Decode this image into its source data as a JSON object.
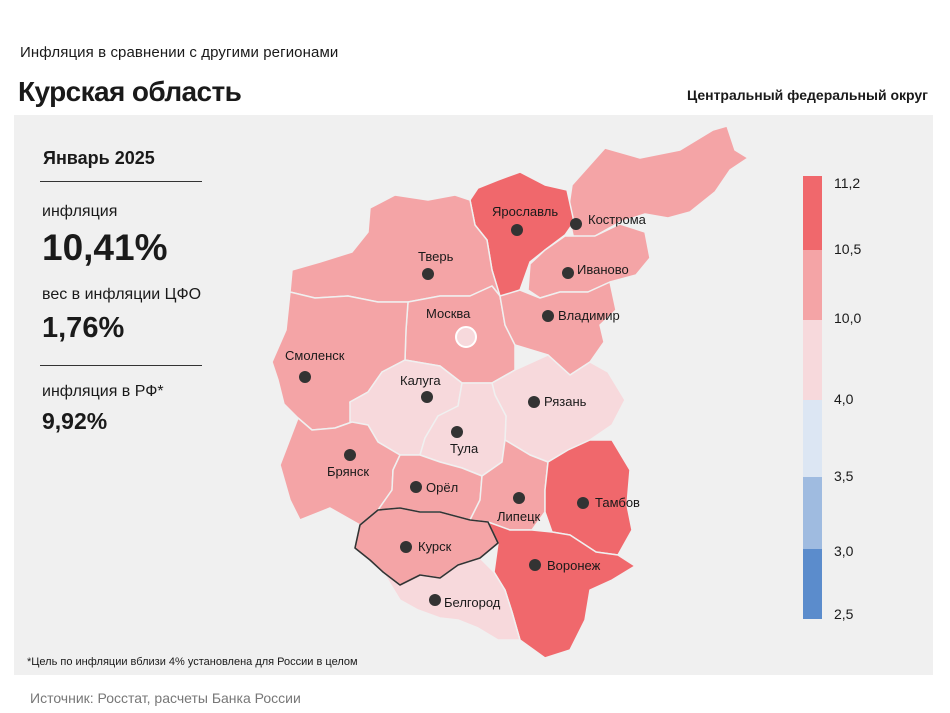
{
  "header": {
    "subtitle": "Инфляция  в сравнении  с другими  регионами",
    "title": "Курская область",
    "district": "Центральный федеральный округ"
  },
  "stats": {
    "period": "Январь 2025",
    "inflation_label": "инфляция",
    "inflation_value": "10,41%",
    "weight_label": "вес в инфляции  ЦФО",
    "weight_value": "1,76%",
    "rf_label": "инфляция  в РФ*",
    "rf_value": "9,92%"
  },
  "footnote": "*Цель по инфляции вблизи 4% установлена для России в целом",
  "source": "Источник: Росстат, расчеты Банка России",
  "highlighted_region": "Курск",
  "colors": {
    "above_10_5": "#f0686c",
    "r10_0_10_5": "#f4a4a6",
    "r4_0_10_0": "#f7d9dc",
    "r3_5_4_0": "#dce6f3",
    "r3_0_3_5": "#9fbbe0",
    "r2_5_3_0": "#5b8ccc"
  },
  "legend": {
    "ticks": [
      "11,2",
      "10,5",
      "10,0",
      "4,0",
      "3,5",
      "3,0",
      "2,5"
    ],
    "bands": [
      {
        "from": "10,5",
        "to": "11,2",
        "color": "#f0686c"
      },
      {
        "from": "10,0",
        "to": "10,5",
        "color": "#f4a4a6"
      },
      {
        "from": "4,0",
        "to": "10,0",
        "color": "#f7d9dc"
      },
      {
        "from": "3,5",
        "to": "4,0",
        "color": "#dce6f3"
      },
      {
        "from": "3,0",
        "to": "3,5",
        "color": "#9fbbe0"
      },
      {
        "from": "2,5",
        "to": "3,0",
        "color": "#5b8ccc"
      }
    ]
  },
  "regions": [
    {
      "name": "Кострома",
      "band": "10,0–10,5"
    },
    {
      "name": "Ярославль",
      "band": "10,5–11,2"
    },
    {
      "name": "Тверь",
      "band": "10,0–10,5"
    },
    {
      "name": "Иваново",
      "band": "10,0–10,5"
    },
    {
      "name": "Москва",
      "band": "10,0–10,5"
    },
    {
      "name": "Владимир",
      "band": "10,0–10,5"
    },
    {
      "name": "Смоленск",
      "band": "10,0–10,5"
    },
    {
      "name": "Калуга",
      "band": "4,0–10,0"
    },
    {
      "name": "Рязань",
      "band": "4,0–10,0"
    },
    {
      "name": "Тула",
      "band": "4,0–10,0"
    },
    {
      "name": "Брянск",
      "band": "10,0–10,5"
    },
    {
      "name": "Орёл",
      "band": "10,0–10,5"
    },
    {
      "name": "Липецк",
      "band": "10,0–10,5"
    },
    {
      "name": "Тамбов",
      "band": "10,5–11,2"
    },
    {
      "name": "Курск",
      "band": "10,0–10,5"
    },
    {
      "name": "Воронеж",
      "band": "10,5–11,2"
    },
    {
      "name": "Белгород",
      "band": "4,0–10,0"
    }
  ]
}
